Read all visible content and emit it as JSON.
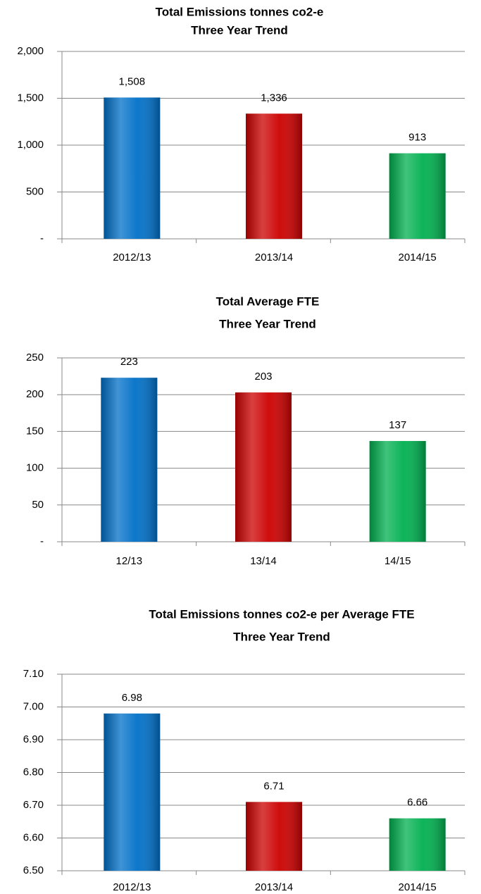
{
  "chart_data": [
    {
      "type": "bar",
      "title": "Total Emissions tonnes co2-e",
      "subtitle": "Three Year Trend",
      "categories": [
        "2012/13",
        "2013/14",
        "2014/15"
      ],
      "values": [
        1508,
        1336,
        913
      ],
      "value_labels": [
        "1,508",
        "1,336",
        "913"
      ],
      "colors": [
        "#0070c8",
        "#cc0000",
        "#00b050"
      ],
      "ylim": [
        0,
        2000
      ],
      "yticks": [
        {
          "value": 0,
          "label": "-"
        },
        500,
        {
          "value": 1000,
          "label": "1,000"
        },
        {
          "value": 1500,
          "label": "1,500"
        },
        {
          "value": 2000,
          "label": "2,000"
        }
      ],
      "grid": true
    },
    {
      "type": "bar",
      "title": "Total Average FTE",
      "subtitle": "Three Year Trend",
      "categories": [
        "12/13",
        "13/14",
        "14/15"
      ],
      "values": [
        223,
        203,
        137
      ],
      "colors": [
        "#0070c8",
        "#cc0000",
        "#00b050"
      ],
      "ylim": [
        0,
        250
      ],
      "yticks": [
        {
          "value": 0,
          "label": "-"
        },
        50,
        100,
        150,
        200,
        250
      ],
      "grid": true
    },
    {
      "type": "bar",
      "title": "Total Emissions tonnes co2-e per Average FTE",
      "subtitle": "Three Year Trend",
      "categories": [
        "2012/13",
        "2013/14",
        "2014/15"
      ],
      "values": [
        6.98,
        6.71,
        6.66
      ],
      "colors": [
        "#0070c8",
        "#cc0000",
        "#00b050"
      ],
      "ylim": [
        6.5,
        7.1
      ],
      "yticks": [
        {
          "value": 6.5,
          "label": "6.50"
        },
        {
          "value": 6.6,
          "label": "6.60"
        },
        {
          "value": 6.7,
          "label": "6.70"
        },
        {
          "value": 6.8,
          "label": "6.80"
        },
        {
          "value": 6.9,
          "label": "6.90"
        },
        {
          "value": 7.0,
          "label": "7.00"
        },
        {
          "value": 7.1,
          "label": "7.10"
        }
      ],
      "grid": true
    }
  ]
}
